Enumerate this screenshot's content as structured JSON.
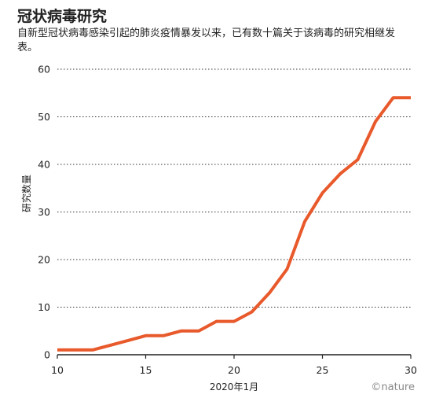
{
  "chart_data": {
    "type": "line",
    "title": "冠状病毒研究",
    "subtitle": "自新型冠状病毒感染引起的肺炎疫情暴发以来，已有数十篇关于该病毒的研究相继发表。",
    "xlabel": "2020年1月",
    "ylabel": "研究数量",
    "xlim": [
      10,
      30
    ],
    "ylim": [
      0,
      60
    ],
    "xticks": [
      10,
      15,
      20,
      25,
      30
    ],
    "yticks": [
      0,
      10,
      20,
      30,
      40,
      50,
      60
    ],
    "grid": "horizontal-dotted",
    "series": [
      {
        "color": "#e8592b",
        "x": [
          10,
          11,
          12,
          13,
          14,
          15,
          16,
          17,
          18,
          19,
          20,
          21,
          22,
          23,
          24,
          25,
          26,
          27,
          28,
          29,
          30
        ],
        "values": [
          1,
          1,
          1,
          2,
          3,
          4,
          4,
          5,
          5,
          7,
          7,
          9,
          13,
          18,
          28,
          34,
          38,
          41,
          49,
          54,
          54
        ]
      }
    ]
  },
  "brand": "©nature"
}
